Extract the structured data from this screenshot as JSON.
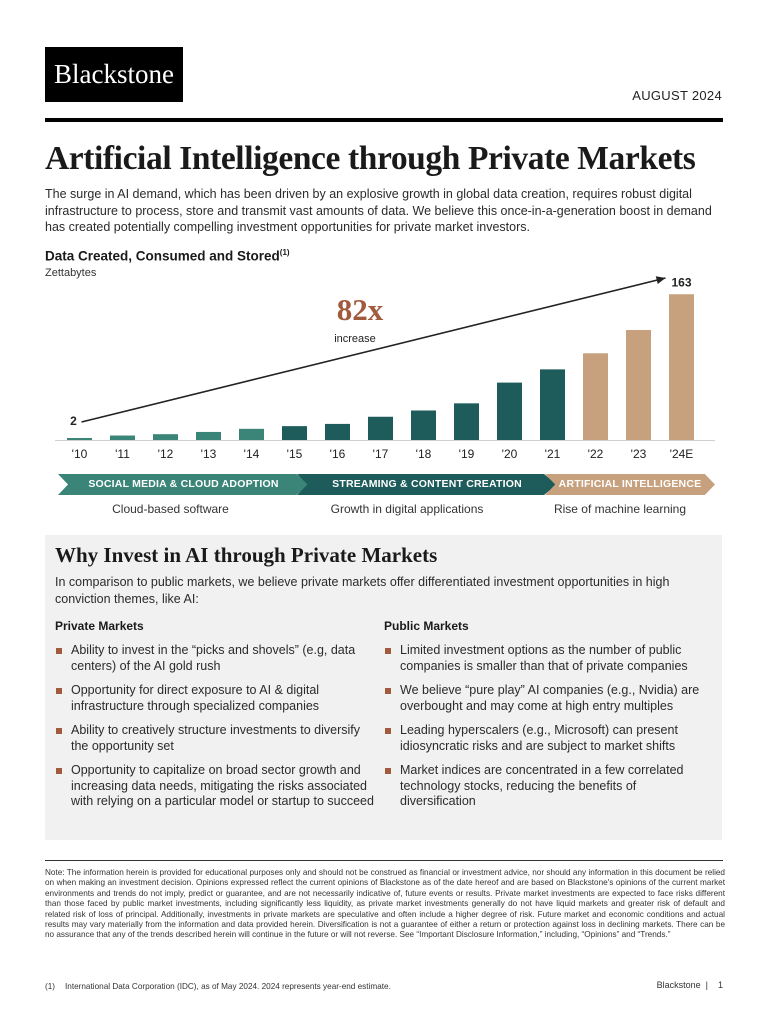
{
  "header": {
    "logo": "Blackstone",
    "date": "AUGUST 2024",
    "title": "Artificial Intelligence through Private Markets",
    "intro": "The surge in AI demand, which has been driven by an explosive growth in global data creation, requires robust digital infrastructure to process, store and transmit vast amounts of data. We believe this once-in-a-generation boost in demand has created potentially compelling investment opportunities for private market investors."
  },
  "chart_data": {
    "type": "bar",
    "title": "Data Created, Consumed and Stored",
    "title_sup": "(1)",
    "ylabel": "Zettabytes",
    "categories": [
      "'10",
      "'11",
      "'12",
      "'13",
      "'14",
      "'15",
      "'16",
      "'17",
      "'18",
      "'19",
      "'20",
      "'21",
      "'22",
      "'23",
      "'24E"
    ],
    "values": [
      2,
      5,
      6.5,
      9,
      12.5,
      15.5,
      18,
      26,
      33,
      41,
      64.2,
      79,
      97,
      123,
      163
    ],
    "ylim": [
      0,
      170
    ],
    "grid": false,
    "data_labels": [
      {
        "index": 0,
        "text": "2"
      },
      {
        "index": 14,
        "text": "163"
      }
    ],
    "annotation": {
      "big": "82x",
      "small": "increase"
    },
    "colors": {
      "historical": "#1d5c5b",
      "early": "#3a8577",
      "recent": "#c7a07d",
      "annotation": "#a25a3c"
    }
  },
  "eras": [
    {
      "label": "SOCIAL MEDIA & CLOUD ADOPTION",
      "sub": "Cloud-based software"
    },
    {
      "label": "STREAMING & CONTENT CREATION",
      "sub": "Growth in digital applications"
    },
    {
      "label": "ARTIFICIAL INTELLIGENCE",
      "sub": "Rise of machine learning"
    }
  ],
  "why": {
    "title": "Why Invest in AI through Private Markets",
    "lead": "In comparison to public markets, we believe private markets offer differentiated investment opportunities in high conviction themes, like AI:",
    "private_head": "Private Markets",
    "private": [
      "Ability to invest in the “picks and shovels” (e.g, data centers) of the AI gold rush",
      "Opportunity for direct exposure to AI & digital infrastructure through specialized companies",
      "Ability to creatively structure investments to diversify the opportunity set",
      "Opportunity to capitalize on broad sector growth and increasing data needs, mitigating the risks associated with relying on a particular model or startup to succeed"
    ],
    "public_head": "Public Markets",
    "public": [
      "Limited investment options as the number of public companies is smaller than that of private companies",
      "We believe “pure play” AI companies (e.g., Nvidia) are overbought and may come at high entry multiples",
      "Leading hyperscalers (e.g., Microsoft) can present idiosyncratic risks and are subject to market shifts",
      "Market indices are concentrated in a few correlated technology stocks, reducing the benefits of diversification"
    ]
  },
  "footer": {
    "note": "Note: The information herein is provided for educational purposes only and should not be construed as financial or investment advice, nor should any information in this document be relied on when making an investment decision. Opinions expressed reflect the current opinions of Blackstone as of the date hereof and are based on Blackstone's opinions of the current market environments and trends do not imply, predict or guarantee, and are not necessarily indicative of, future events or results. Private market investments are expected to face risks different than those faced by public market investments, including significantly less liquidity, as private market investments generally do not have liquid markets and greater risk of default and related risk of loss of principal. Additionally, investments in private markets are speculative and often include a higher degree of risk. Future market and economic conditions and actual results may vary materially from the information and data provided herein. Diversification is not a guarantee of either a return or protection against loss in declining markets. There can be no assurance that any of the trends described herein will continue in the future or will not reverse. See “Important Disclosure Information,” including, “Opinions” and “Trends.”",
    "fn_marker": "(1)",
    "fn_text": "International Data Corporation (IDC), as of May 2024. 2024 represents year-end estimate.",
    "page": "Blackstone  |    1"
  }
}
